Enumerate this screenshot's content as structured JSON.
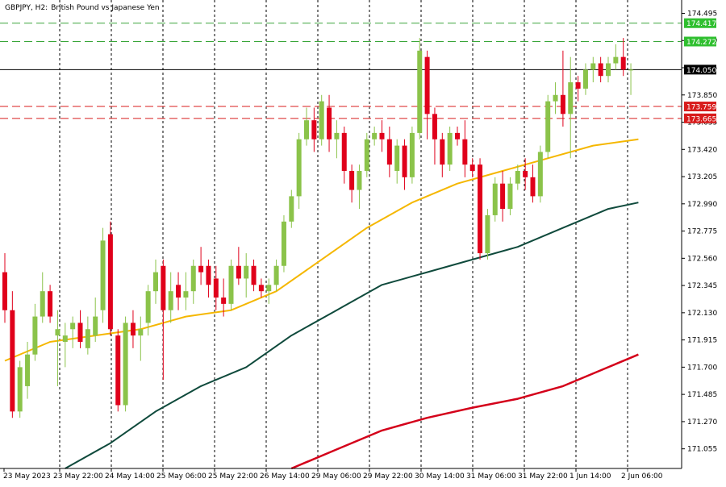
{
  "header": {
    "symbol_tf": "GBPJPY, H2:",
    "description": "British Pound vs Japanese Yen"
  },
  "chart_data": {
    "type": "candlestick",
    "symbol": "GBPJPY",
    "timeframe": "H2",
    "title": "British Pound vs Japanese Yen",
    "ylim": [
      170.9,
      174.6
    ],
    "grid": "vertical dashed",
    "y_ticks": [
      "174.495",
      "174.280",
      "174.065",
      "173.850",
      "173.635",
      "173.420",
      "173.205",
      "172.990",
      "172.775",
      "172.560",
      "172.345",
      "172.130",
      "171.915",
      "171.700",
      "171.485",
      "171.270",
      "171.055"
    ],
    "x_ticks": [
      "23 May 2023",
      "23 May 22:00",
      "24 May 14:00",
      "25 May 06:00",
      "25 May 22:00",
      "26 May 14:00",
      "29 May 06:00",
      "29 May 22:00",
      "30 May 14:00",
      "31 May 06:00",
      "31 May 22:00",
      "1 Jun 14:00",
      "2 Jun 06:00"
    ],
    "colors": {
      "bull": "#8bc34a",
      "bear": "#e0001b",
      "ma_fast": "#f5b700",
      "ma_mid": "#0f4a3c",
      "ma_slow": "#d4001a",
      "resistance": "#3aa63a",
      "support": "#d81c1c",
      "price_line": "#000000"
    },
    "levels": [
      {
        "price": 174.417,
        "label": "174.417",
        "kind": "resistance"
      },
      {
        "price": 174.272,
        "label": "174.272",
        "kind": "resistance"
      },
      {
        "price": 174.05,
        "label": "174.050",
        "kind": "current"
      },
      {
        "price": 173.759,
        "label": "173.759",
        "kind": "support"
      },
      {
        "price": 173.665,
        "label": "173.665",
        "kind": "support"
      }
    ],
    "candles": [
      [
        172.45,
        172.6,
        172.05,
        172.15
      ],
      [
        172.15,
        172.3,
        171.3,
        171.35
      ],
      [
        171.35,
        171.75,
        171.3,
        171.7
      ],
      [
        171.55,
        171.9,
        171.45,
        171.8
      ],
      [
        171.8,
        172.2,
        171.75,
        172.1
      ],
      [
        172.1,
        172.45,
        172.05,
        172.3
      ],
      [
        172.3,
        172.35,
        172.05,
        172.1
      ],
      [
        171.95,
        172.15,
        171.55,
        172.0
      ],
      [
        171.9,
        172.05,
        171.7,
        171.95
      ],
      [
        172.0,
        172.1,
        171.85,
        172.05
      ],
      [
        172.05,
        172.15,
        171.85,
        171.9
      ],
      [
        171.85,
        172.1,
        171.8,
        172.0
      ],
      [
        171.95,
        172.25,
        171.9,
        172.1
      ],
      [
        172.15,
        172.8,
        172.05,
        172.7
      ],
      [
        172.75,
        172.85,
        171.95,
        172.0
      ],
      [
        171.95,
        172.0,
        171.35,
        171.4
      ],
      [
        171.4,
        172.1,
        171.35,
        172.05
      ],
      [
        172.05,
        172.15,
        171.85,
        171.95
      ],
      [
        171.95,
        172.1,
        171.75,
        172.0
      ],
      [
        172.05,
        172.35,
        171.95,
        172.3
      ],
      [
        172.3,
        172.55,
        172.2,
        172.45
      ],
      [
        172.5,
        172.55,
        171.6,
        172.15
      ],
      [
        172.15,
        172.45,
        172.05,
        172.3
      ],
      [
        172.35,
        172.45,
        172.15,
        172.25
      ],
      [
        172.25,
        172.45,
        172.15,
        172.3
      ],
      [
        172.3,
        172.55,
        172.2,
        172.5
      ],
      [
        172.5,
        172.65,
        172.35,
        172.45
      ],
      [
        172.5,
        172.55,
        172.25,
        172.35
      ],
      [
        172.4,
        172.5,
        172.15,
        172.25
      ],
      [
        172.25,
        172.4,
        172.1,
        172.2
      ],
      [
        172.2,
        172.55,
        172.15,
        172.5
      ],
      [
        172.5,
        172.65,
        172.35,
        172.4
      ],
      [
        172.4,
        172.6,
        172.25,
        172.5
      ],
      [
        172.5,
        172.55,
        172.3,
        172.35
      ],
      [
        172.35,
        172.4,
        172.25,
        172.3
      ],
      [
        172.3,
        172.4,
        172.2,
        172.35
      ],
      [
        172.35,
        172.55,
        172.3,
        172.5
      ],
      [
        172.5,
        172.9,
        172.45,
        172.85
      ],
      [
        172.85,
        173.1,
        172.8,
        173.05
      ],
      [
        173.05,
        173.55,
        172.95,
        173.5
      ],
      [
        173.5,
        173.75,
        173.45,
        173.65
      ],
      [
        173.65,
        173.75,
        173.4,
        173.5
      ],
      [
        173.5,
        173.85,
        173.45,
        173.8
      ],
      [
        173.75,
        173.85,
        173.4,
        173.5
      ],
      [
        173.5,
        173.65,
        173.35,
        173.55
      ],
      [
        173.55,
        173.6,
        173.15,
        173.25
      ],
      [
        173.25,
        173.3,
        173.0,
        173.1
      ],
      [
        173.1,
        173.3,
        172.95,
        173.25
      ],
      [
        173.25,
        173.55,
        173.2,
        173.5
      ],
      [
        173.5,
        173.6,
        173.45,
        173.55
      ],
      [
        173.55,
        173.65,
        173.4,
        173.5
      ],
      [
        173.5,
        173.6,
        173.2,
        173.3
      ],
      [
        173.25,
        173.5,
        173.15,
        173.45
      ],
      [
        173.45,
        173.5,
        173.1,
        173.2
      ],
      [
        173.2,
        173.6,
        173.15,
        173.55
      ],
      [
        173.55,
        174.3,
        173.5,
        174.2
      ],
      [
        174.15,
        174.2,
        173.5,
        173.7
      ],
      [
        173.7,
        173.75,
        173.3,
        173.5
      ],
      [
        173.5,
        173.55,
        173.2,
        173.3
      ],
      [
        173.3,
        173.6,
        173.25,
        173.55
      ],
      [
        173.55,
        173.6,
        173.45,
        173.5
      ],
      [
        173.5,
        173.65,
        173.2,
        173.3
      ],
      [
        173.3,
        173.35,
        173.2,
        173.25
      ],
      [
        173.3,
        173.35,
        172.55,
        172.6
      ],
      [
        172.6,
        172.95,
        172.55,
        172.9
      ],
      [
        172.9,
        173.2,
        172.85,
        173.15
      ],
      [
        173.15,
        173.25,
        172.85,
        172.95
      ],
      [
        172.95,
        173.2,
        172.9,
        173.15
      ],
      [
        173.15,
        173.3,
        173.1,
        173.25
      ],
      [
        173.25,
        173.35,
        173.1,
        173.2
      ],
      [
        173.2,
        173.3,
        173.0,
        173.05
      ],
      [
        173.05,
        173.45,
        173.0,
        173.4
      ],
      [
        173.4,
        173.85,
        173.35,
        173.8
      ],
      [
        173.8,
        173.95,
        173.7,
        173.85
      ],
      [
        173.85,
        174.2,
        173.6,
        173.7
      ],
      [
        173.7,
        174.15,
        173.35,
        173.95
      ],
      [
        173.95,
        174.0,
        173.8,
        173.9
      ],
      [
        173.9,
        174.1,
        173.85,
        174.05
      ],
      [
        174.05,
        174.15,
        173.95,
        174.1
      ],
      [
        174.1,
        174.15,
        173.95,
        174.0
      ],
      [
        174.0,
        174.15,
        173.95,
        174.1
      ],
      [
        174.1,
        174.25,
        174.05,
        174.15
      ],
      [
        174.15,
        174.3,
        174.0,
        174.05
      ],
      [
        174.05,
        174.1,
        173.85,
        174.05
      ]
    ],
    "ma_fast": [
      [
        0,
        171.75
      ],
      [
        6,
        171.9
      ],
      [
        12,
        171.95
      ],
      [
        18,
        172.0
      ],
      [
        24,
        172.1
      ],
      [
        30,
        172.15
      ],
      [
        36,
        172.3
      ],
      [
        42,
        172.55
      ],
      [
        48,
        172.8
      ],
      [
        54,
        173.0
      ],
      [
        60,
        173.15
      ],
      [
        66,
        173.25
      ],
      [
        72,
        173.35
      ],
      [
        78,
        173.45
      ],
      [
        84,
        173.5
      ]
    ],
    "ma_mid": [
      [
        8,
        170.9
      ],
      [
        14,
        171.1
      ],
      [
        20,
        171.35
      ],
      [
        26,
        171.55
      ],
      [
        32,
        171.7
      ],
      [
        38,
        171.95
      ],
      [
        44,
        172.15
      ],
      [
        50,
        172.35
      ],
      [
        56,
        172.45
      ],
      [
        62,
        172.55
      ],
      [
        68,
        172.65
      ],
      [
        74,
        172.8
      ],
      [
        80,
        172.95
      ],
      [
        84,
        173.0
      ]
    ],
    "ma_slow": [
      [
        38,
        170.9
      ],
      [
        44,
        171.05
      ],
      [
        50,
        171.2
      ],
      [
        56,
        171.3
      ],
      [
        62,
        171.38
      ],
      [
        68,
        171.45
      ],
      [
        74,
        171.55
      ],
      [
        80,
        171.7
      ],
      [
        84,
        171.8
      ]
    ]
  }
}
